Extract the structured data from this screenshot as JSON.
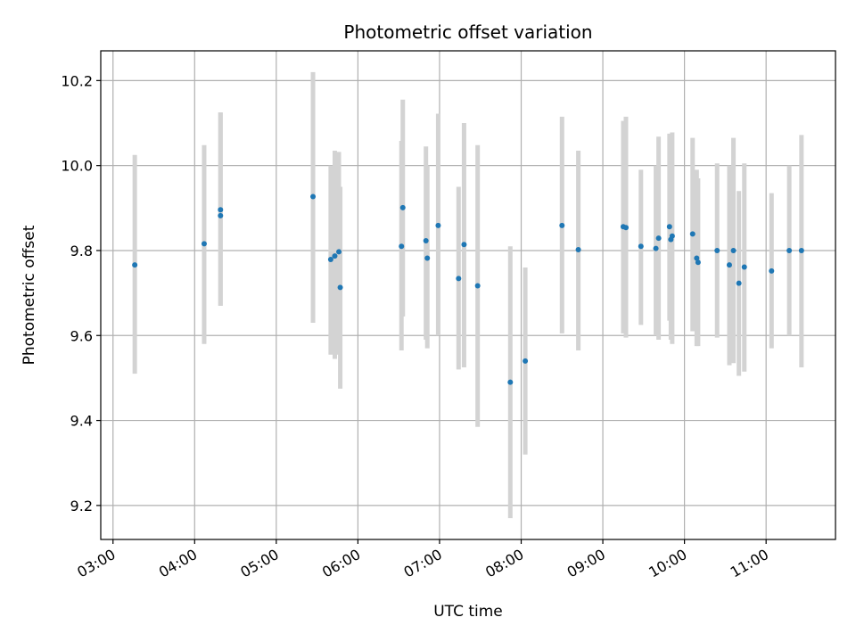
{
  "chart_data": {
    "type": "scatter",
    "title": "Photometric offset variation",
    "xlabel": "UTC time",
    "ylabel": "Photometric offset",
    "x_axis": "time",
    "xlim": [
      "02:51",
      "11:51"
    ],
    "ylim": [
      9.12,
      10.27
    ],
    "grid": true,
    "x_ticks": [
      "03:00",
      "04:00",
      "05:00",
      "06:00",
      "07:00",
      "08:00",
      "09:00",
      "10:00",
      "11:00"
    ],
    "y_ticks": [
      9.2,
      9.4,
      9.6,
      9.8,
      10.0,
      10.2
    ],
    "y_tick_labels": [
      "9.2",
      "9.4",
      "9.6",
      "9.8",
      "10.0",
      "10.2"
    ],
    "marker_color": "#1f77b4",
    "errorbar_color": "#d3d3d3",
    "points": [
      {
        "x": "03:16",
        "y": 9.766,
        "lo": 9.51,
        "hi": 10.025
      },
      {
        "x": "04:07",
        "y": 9.816,
        "lo": 9.58,
        "hi": 10.048
      },
      {
        "x": "04:19",
        "y": 9.896,
        "lo": 9.67,
        "hi": 10.125
      },
      {
        "x": "04:19",
        "y": 9.882,
        "lo": 9.67,
        "hi": 10.125
      },
      {
        "x": "05:27",
        "y": 9.927,
        "lo": 9.63,
        "hi": 10.22
      },
      {
        "x": "05:40",
        "y": 9.779,
        "lo": 9.555,
        "hi": 10.0
      },
      {
        "x": "05:43",
        "y": 9.787,
        "lo": 9.545,
        "hi": 10.035
      },
      {
        "x": "05:46",
        "y": 9.797,
        "lo": 9.555,
        "hi": 10.032
      },
      {
        "x": "05:47",
        "y": 9.713,
        "lo": 9.475,
        "hi": 9.95
      },
      {
        "x": "06:32",
        "y": 9.81,
        "lo": 9.565,
        "hi": 10.058
      },
      {
        "x": "06:33",
        "y": 9.901,
        "lo": 9.645,
        "hi": 10.155
      },
      {
        "x": "06:50",
        "y": 9.823,
        "lo": 9.59,
        "hi": 10.045
      },
      {
        "x": "06:51",
        "y": 9.782,
        "lo": 9.57,
        "hi": 10.0
      },
      {
        "x": "06:59",
        "y": 9.859,
        "lo": 9.6,
        "hi": 10.122
      },
      {
        "x": "07:14",
        "y": 9.734,
        "lo": 9.52,
        "hi": 9.95
      },
      {
        "x": "07:18",
        "y": 9.814,
        "lo": 9.525,
        "hi": 10.1
      },
      {
        "x": "07:28",
        "y": 9.717,
        "lo": 9.385,
        "hi": 10.048
      },
      {
        "x": "07:52",
        "y": 9.49,
        "lo": 9.17,
        "hi": 9.81
      },
      {
        "x": "08:03",
        "y": 9.54,
        "lo": 9.32,
        "hi": 9.76
      },
      {
        "x": "08:30",
        "y": 9.859,
        "lo": 9.605,
        "hi": 10.115
      },
      {
        "x": "08:42",
        "y": 9.802,
        "lo": 9.565,
        "hi": 10.035
      },
      {
        "x": "09:15",
        "y": 9.856,
        "lo": 9.605,
        "hi": 10.105
      },
      {
        "x": "09:17",
        "y": 9.854,
        "lo": 9.595,
        "hi": 10.115
      },
      {
        "x": "09:28",
        "y": 9.81,
        "lo": 9.625,
        "hi": 9.99
      },
      {
        "x": "09:39",
        "y": 9.805,
        "lo": 9.6,
        "hi": 10.0
      },
      {
        "x": "09:41",
        "y": 9.829,
        "lo": 9.59,
        "hi": 10.068
      },
      {
        "x": "09:49",
        "y": 9.856,
        "lo": 9.635,
        "hi": 10.075
      },
      {
        "x": "09:50",
        "y": 9.826,
        "lo": 9.59,
        "hi": 10.06
      },
      {
        "x": "09:51",
        "y": 9.834,
        "lo": 9.58,
        "hi": 10.078
      },
      {
        "x": "10:06",
        "y": 9.839,
        "lo": 9.61,
        "hi": 10.065
      },
      {
        "x": "10:09",
        "y": 9.782,
        "lo": 9.575,
        "hi": 9.99
      },
      {
        "x": "10:10",
        "y": 9.772,
        "lo": 9.575,
        "hi": 9.97
      },
      {
        "x": "10:24",
        "y": 9.8,
        "lo": 9.595,
        "hi": 10.005
      },
      {
        "x": "10:33",
        "y": 9.766,
        "lo": 9.53,
        "hi": 10.0
      },
      {
        "x": "10:36",
        "y": 9.8,
        "lo": 9.535,
        "hi": 10.065
      },
      {
        "x": "10:40",
        "y": 9.723,
        "lo": 9.505,
        "hi": 9.94
      },
      {
        "x": "10:44",
        "y": 9.761,
        "lo": 9.515,
        "hi": 10.005
      },
      {
        "x": "11:04",
        "y": 9.752,
        "lo": 9.57,
        "hi": 9.935
      },
      {
        "x": "11:17",
        "y": 9.8,
        "lo": 9.6,
        "hi": 10.0
      },
      {
        "x": "11:26",
        "y": 9.8,
        "lo": 9.525,
        "hi": 10.072
      }
    ]
  }
}
